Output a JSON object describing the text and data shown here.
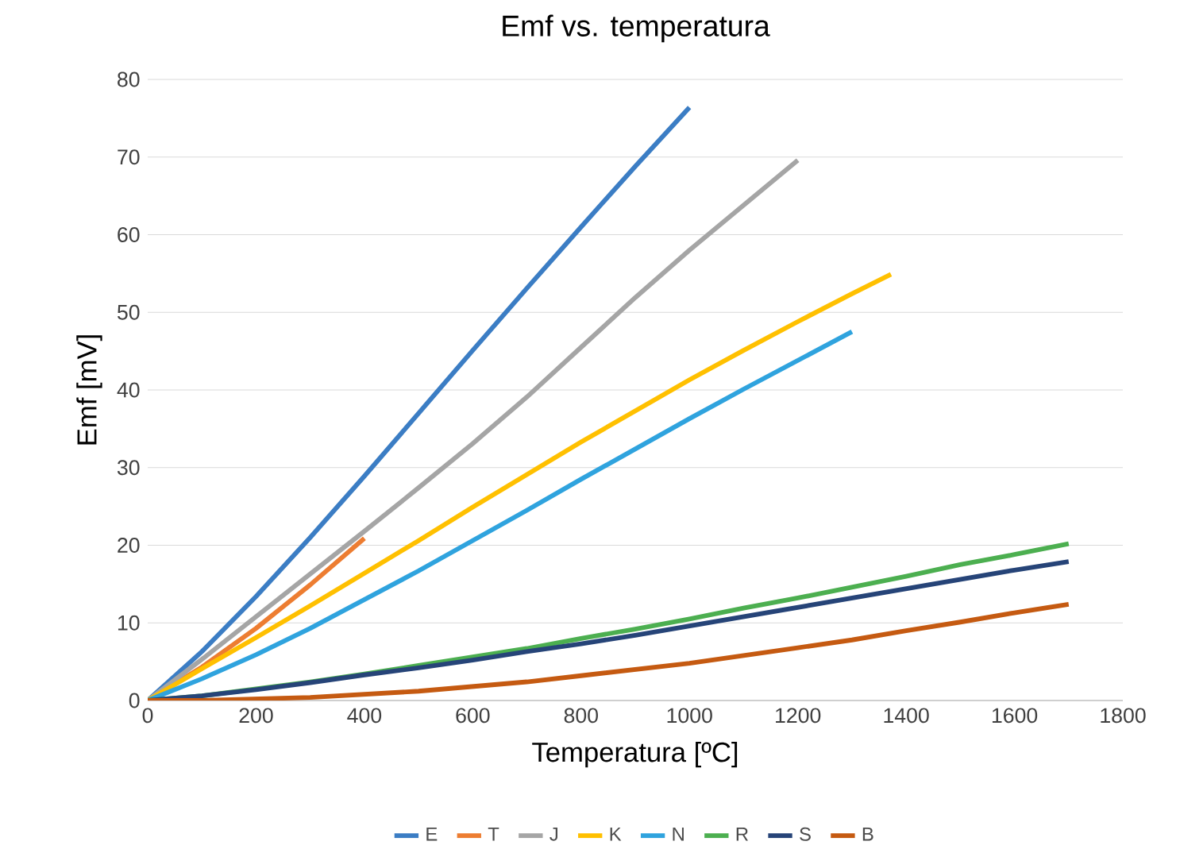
{
  "chart_data": {
    "type": "line",
    "title": "Emf vs. temperatura",
    "xlabel": "Temperatura [ºC]",
    "ylabel": "Emf [mV]",
    "xlim": [
      0,
      1800
    ],
    "xticks": [
      0,
      200,
      400,
      600,
      800,
      1000,
      1200,
      1400,
      1600,
      1800
    ],
    "ylim": [
      0,
      80
    ],
    "yticks": [
      0,
      10,
      20,
      30,
      40,
      50,
      60,
      70,
      80
    ],
    "grid": "y",
    "legend": "bottom",
    "marker": "none",
    "line_style": "solid",
    "series": [
      {
        "name": "E",
        "color": "#3b7dc4",
        "x": [
          0,
          100,
          200,
          300,
          400,
          500,
          600,
          700,
          800,
          900,
          1000
        ],
        "values": [
          0,
          6.3,
          13.4,
          21.0,
          28.9,
          37.0,
          45.1,
          53.1,
          61.0,
          68.8,
          76.4
        ]
      },
      {
        "name": "T",
        "color": "#ed7d31",
        "x": [
          0,
          100,
          200,
          300,
          400
        ],
        "values": [
          0,
          4.3,
          9.3,
          14.9,
          20.9
        ]
      },
      {
        "name": "J",
        "color": "#a5a5a5",
        "x": [
          0,
          100,
          200,
          300,
          400,
          500,
          600,
          700,
          800,
          900,
          1000,
          1100,
          1200
        ],
        "values": [
          0,
          5.3,
          10.8,
          16.3,
          21.8,
          27.4,
          33.1,
          39.1,
          45.5,
          51.9,
          58.0,
          63.8,
          69.6
        ]
      },
      {
        "name": "K",
        "color": "#ffc000",
        "x": [
          0,
          100,
          200,
          300,
          400,
          500,
          600,
          700,
          800,
          900,
          1000,
          1100,
          1200,
          1300,
          1372
        ],
        "values": [
          0,
          4.1,
          8.1,
          12.2,
          16.4,
          20.6,
          24.9,
          29.1,
          33.3,
          37.3,
          41.3,
          45.1,
          48.8,
          52.4,
          54.9
        ]
      },
      {
        "name": "N",
        "color": "#2fa3de",
        "x": [
          0,
          100,
          200,
          300,
          400,
          500,
          600,
          700,
          800,
          900,
          1000,
          1100,
          1200,
          1300
        ],
        "values": [
          0,
          2.8,
          5.9,
          9.3,
          13.0,
          16.7,
          20.6,
          24.5,
          28.5,
          32.4,
          36.3,
          40.1,
          43.8,
          47.5
        ]
      },
      {
        "name": "R",
        "color": "#4caf50",
        "x": [
          0,
          100,
          200,
          300,
          400,
          500,
          600,
          700,
          800,
          900,
          1000,
          1100,
          1200,
          1300,
          1400,
          1500,
          1600,
          1700
        ],
        "values": [
          0,
          0.6,
          1.5,
          2.4,
          3.4,
          4.5,
          5.6,
          6.7,
          8.0,
          9.2,
          10.5,
          11.9,
          13.2,
          14.6,
          16.0,
          17.5,
          18.8,
          20.2
        ]
      },
      {
        "name": "S",
        "color": "#264478",
        "x": [
          0,
          100,
          200,
          300,
          400,
          500,
          600,
          700,
          800,
          900,
          1000,
          1100,
          1200,
          1300,
          1400,
          1500,
          1600,
          1700
        ],
        "values": [
          0,
          0.6,
          1.4,
          2.3,
          3.3,
          4.2,
          5.2,
          6.3,
          7.3,
          8.4,
          9.6,
          10.8,
          12.0,
          13.2,
          14.4,
          15.6,
          16.8,
          17.9
        ]
      },
      {
        "name": "B",
        "color": "#c55a11",
        "x": [
          0,
          100,
          200,
          300,
          400,
          500,
          600,
          700,
          800,
          900,
          1000,
          1100,
          1200,
          1300,
          1400,
          1500,
          1600,
          1700
        ],
        "values": [
          0,
          0.0,
          0.2,
          0.4,
          0.8,
          1.2,
          1.8,
          2.4,
          3.2,
          4.0,
          4.8,
          5.8,
          6.8,
          7.8,
          9.0,
          10.1,
          11.3,
          12.4
        ]
      }
    ]
  }
}
